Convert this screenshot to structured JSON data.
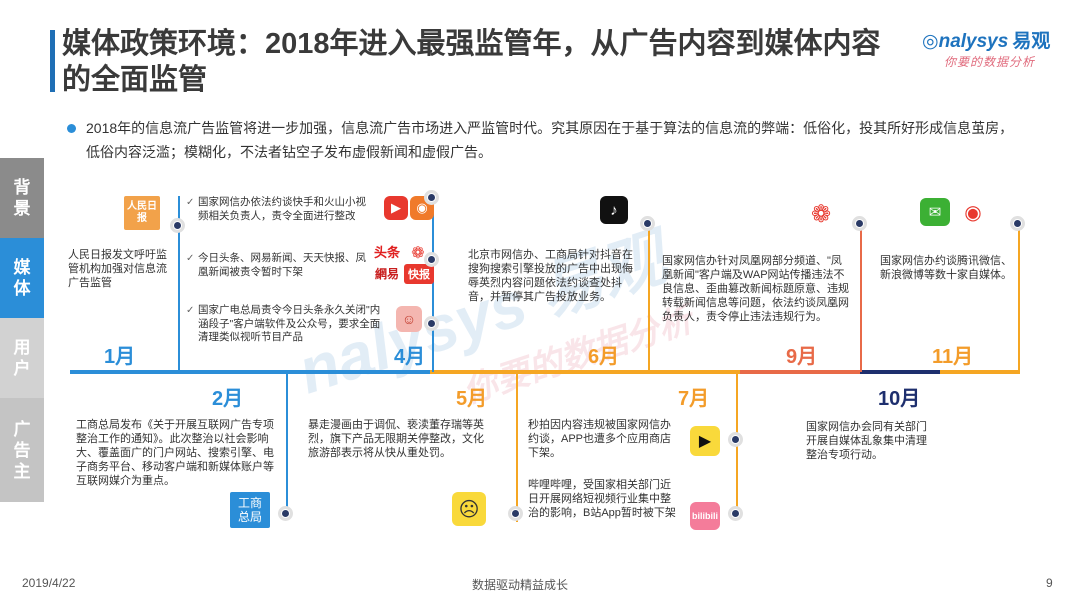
{
  "header": {
    "title": "媒体政策环境：2018年进入最强监管年，从广告内容到媒体内容的全面监管",
    "logo_brand": "nalysys",
    "logo_cn": "易观",
    "logo_slogan": "你要的数据分析"
  },
  "intro": "2018年的信息流广告监管将进一步加强，信息流广告市场进入严监管时代。究其原因在于基于算法的信息流的弊端：低俗化，投其所好形成信息茧房，低俗内容泛滥；模糊化，不法者钻空子发布虚假新闻和虚假广告。",
  "side_tabs": [
    "背景",
    "媒体",
    "用户",
    "广告主"
  ],
  "timeline": {
    "top": {
      "jan": {
        "month": "1月",
        "icon": "人民日报",
        "text": "人民日报发文呼吁监管机构加强对信息流广告监管"
      },
      "apr": {
        "month": "4月",
        "bullets": [
          "国家网信办依法约谈快手和火山小视频相关负责人，责令全面进行整改",
          "今日头条、网易新闻、天天快报、凤凰新闻被责令暂时下架",
          "国家广电总局责令今日头条永久关闭\"内涵段子\"客户端软件及公众号，要求全面清理类似视听节目产品"
        ],
        "icon_toutiao": "头条",
        "icon_netease": "網易",
        "icon_kuaibao": "快报"
      },
      "jun": {
        "month": "6月",
        "text": "北京市网信办、工商局针对抖音在搜狗搜索引擎投放的广告中出现侮辱英烈内容问题依法约谈查处抖音，并暂停其广告投放业务。"
      },
      "sep": {
        "month": "9月",
        "text": "国家网信办针对凤凰网部分频道、\"凤凰新闻\"客户端及WAP网站传播违法不良信息、歪曲篡改新闻标题原意、违规转载新闻信息等问题，依法约谈凤凰网负责人，责令停止违法违规行为。"
      },
      "nov": {
        "month": "11月",
        "text": "国家网信办约谈腾讯微信、新浪微博等数十家自媒体。"
      }
    },
    "bottom": {
      "feb": {
        "month": "2月",
        "text": "工商总局发布《关于开展互联网广告专项整治工作的通知》。此次整治以社会影响大、覆盖面广的门户网站、搜索引擎、电子商务平台、移动客户端和新媒体账户等互联网媒介为重点。",
        "icon": "工商\n总局"
      },
      "may": {
        "month": "5月",
        "text": "暴走漫画由于调侃、亵渎董存瑞等英烈，旗下产品无限期关停整改，文化旅游部表示将从快从重处罚。"
      },
      "jul": {
        "month": "7月",
        "text1": "秒拍因内容违规被国家网信办约谈，APP也遭多个应用商店下架。",
        "text2": "哔哩哔哩，受国家相关部门近日开展网络短视频行业集中整治的影响，B站App暂时被下架",
        "icon_bili": "bilibili"
      },
      "oct": {
        "month": "10月",
        "text": "国家网信办会同有关部门开展自媒体乱象集中清理整治专项行动。"
      }
    }
  },
  "colors": {
    "jan": "#2b8ed8",
    "feb": "#2b8ed8",
    "apr": "#2b8ed8",
    "may": "#f39c2a",
    "jun": "#f39c2a",
    "jul": "#f39c2a",
    "sep": "#e86a48",
    "oct": "#1e2f6e",
    "nov": "#f39c2a"
  },
  "footer": {
    "date": "2019/4/22",
    "slogan": "数据驱动精益成长",
    "page": "9"
  }
}
